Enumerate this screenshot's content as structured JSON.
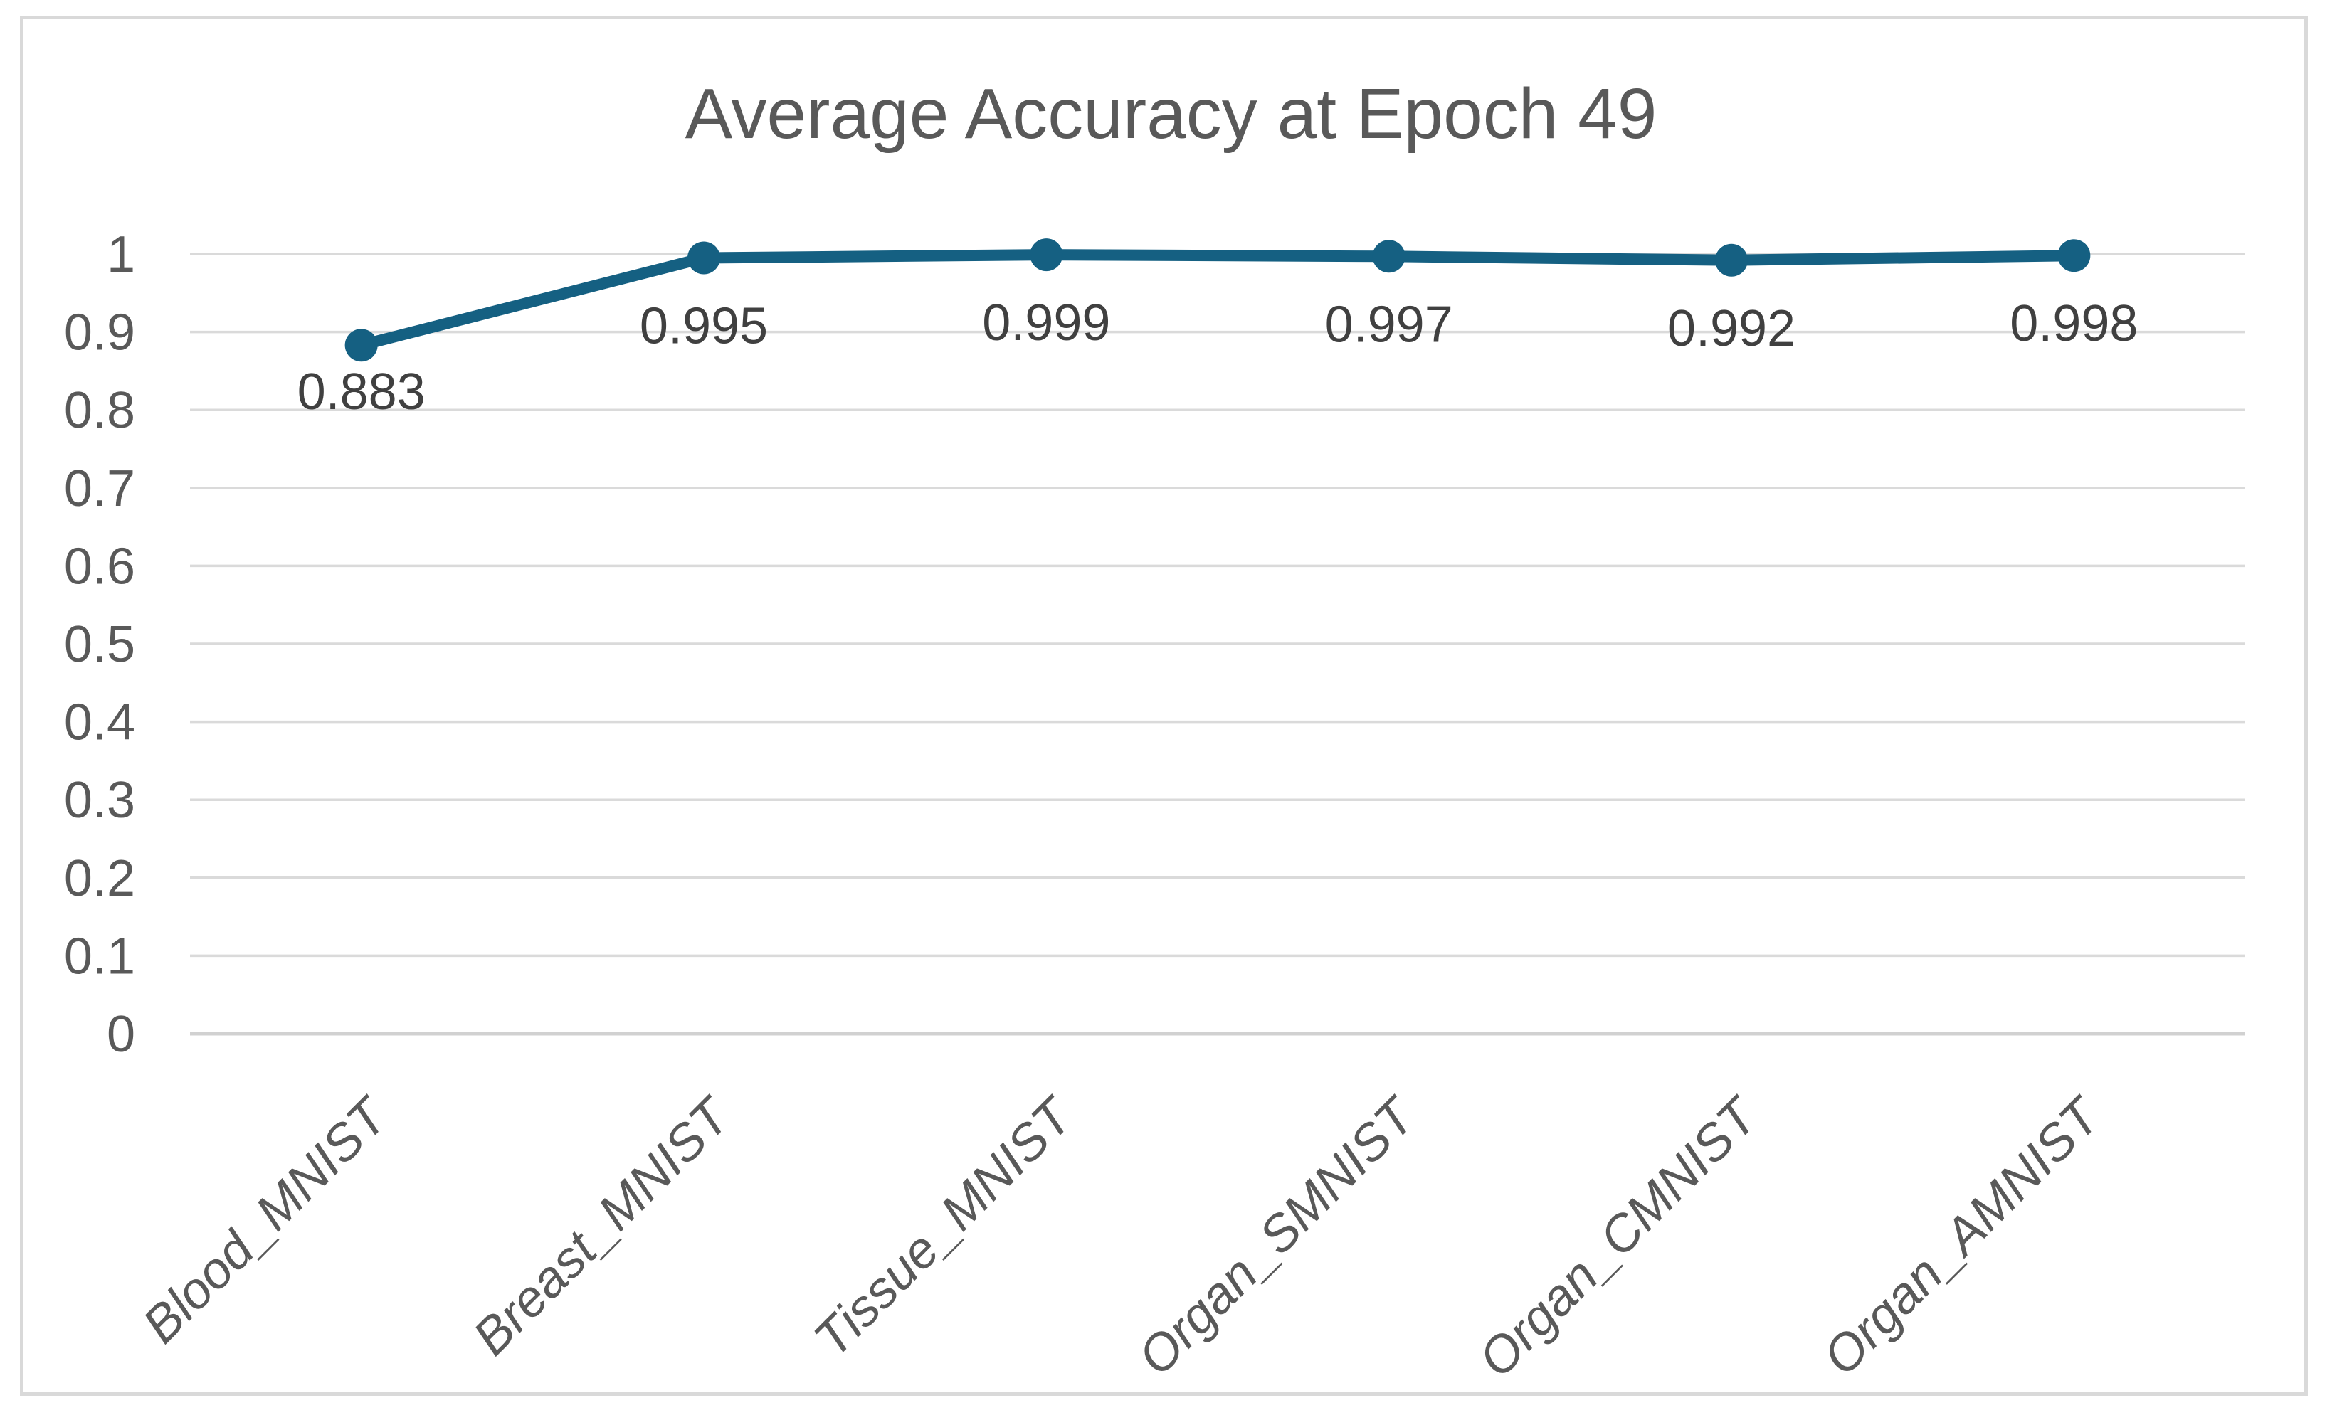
{
  "chart_data": {
    "type": "line",
    "title": "Average Accuracy at Epoch 49",
    "categories": [
      "Blood_MNIST",
      "Breast_MNIST",
      "Tissue_MNIST",
      "Organ_SMNIST",
      "Organ_CMNIST",
      "Organ_AMNIST"
    ],
    "values": [
      0.883,
      0.995,
      0.999,
      0.997,
      0.992,
      0.998
    ],
    "data_labels": [
      "0.883",
      "0.995",
      "0.999",
      "0.997",
      "0.992",
      "0.998"
    ],
    "ylim": [
      0,
      1
    ],
    "ytick_labels": [
      "0",
      "0.1",
      "0.2",
      "0.3",
      "0.4",
      "0.5",
      "0.6",
      "0.7",
      "0.8",
      "0.9",
      "1"
    ],
    "ytick_values": [
      0,
      0.1,
      0.2,
      0.3,
      0.4,
      0.5,
      0.6,
      0.7,
      0.8,
      0.9,
      1
    ],
    "xlabel": "",
    "ylabel": "",
    "grid": true,
    "legend": "none",
    "colors": {
      "line": "#156082",
      "marker": "#156082",
      "gridline": "#DADADA",
      "axis_line": "#D1D1D1",
      "title_text": "#595959",
      "tick_text": "#595959",
      "data_label_text": "#404040",
      "frame_border": "#D9D9D9",
      "background": "#FFFFFF"
    }
  }
}
